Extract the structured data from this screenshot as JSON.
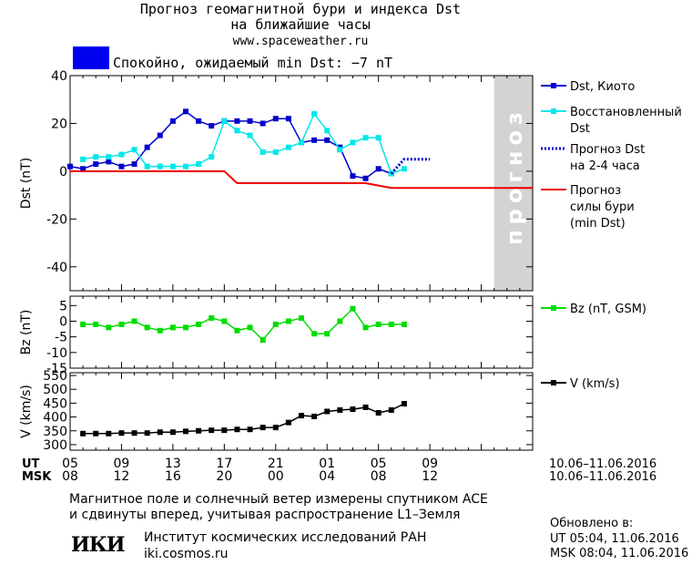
{
  "header": {
    "title_line1": "Прогноз геомагнитной бури и индекса Dst",
    "title_line2": "на ближайшие часы",
    "url": "www.spaceweather.ru",
    "status_text": "Спокойно, ожидаемый min Dst: −7 nT",
    "status_color": "#0000ee"
  },
  "chart_data": [
    {
      "type": "line",
      "ylabel": "Dst (nT)",
      "ylim": [
        -50,
        40
      ],
      "yticks": [
        -40,
        -20,
        0,
        20,
        40
      ],
      "xlim": [
        5,
        41
      ],
      "forecast_region_label": "прогноз",
      "forecast_region": [
        38,
        41
      ],
      "series": [
        {
          "name": "Dst, Киото",
          "color": "#0000cc",
          "x": [
            5,
            6,
            7,
            8,
            9,
            10,
            11,
            12,
            13,
            14,
            15,
            16,
            17,
            18,
            19,
            20,
            21,
            22,
            23,
            24,
            25,
            26,
            27,
            28,
            29,
            30,
            31,
            32
          ],
          "y": [
            2,
            1,
            3,
            4,
            2,
            3,
            10,
            15,
            21,
            25,
            21,
            19,
            21,
            21,
            21,
            20,
            22,
            22,
            12,
            13,
            13,
            10,
            -2,
            -3,
            1,
            -1,
            null,
            null
          ]
        },
        {
          "name": "Восстановленный Dst",
          "color": "#00e8e8",
          "x": [
            6,
            7,
            8,
            9,
            10,
            11,
            12,
            13,
            14,
            15,
            16,
            17,
            18,
            19,
            20,
            21,
            22,
            23,
            24,
            25,
            26,
            27,
            28,
            29,
            30,
            31
          ],
          "y": [
            5,
            6,
            6,
            7,
            9,
            2,
            2,
            2,
            2,
            3,
            6,
            21,
            17,
            15,
            8,
            8,
            10,
            12,
            24,
            17,
            9,
            12,
            14,
            14,
            -1,
            1
          ]
        },
        {
          "name": "Прогноз Dst на 2-4 часа",
          "color": "#0000cc",
          "x": [
            30,
            31,
            32,
            33
          ],
          "y": [
            -1,
            5,
            5,
            5
          ]
        },
        {
          "name": "Прогноз силы бури (min Dst)",
          "color": "#ee0000",
          "x": [
            5,
            17,
            18,
            28,
            30,
            41
          ],
          "y": [
            0,
            0,
            -5,
            -5,
            -7,
            -7
          ]
        }
      ]
    },
    {
      "type": "line",
      "ylabel": "Bz (nT)",
      "ylim": [
        -15,
        8
      ],
      "yticks": [
        5,
        0,
        -5,
        -10,
        -15
      ],
      "series": [
        {
          "name": "Bz (nT, GSM)",
          "color": "#00dd00",
          "x": [
            6,
            7,
            8,
            9,
            10,
            11,
            12,
            13,
            14,
            15,
            16,
            17,
            18,
            19,
            20,
            21,
            22,
            23,
            24,
            25,
            26,
            27,
            28,
            29,
            30,
            31
          ],
          "y": [
            -1,
            -1,
            -2,
            -1,
            0,
            -2,
            -3,
            -2,
            -2,
            -1,
            1,
            0,
            -3,
            -2,
            -6,
            -1,
            0,
            1,
            -4,
            -4,
            0,
            4,
            -2,
            -1,
            -1,
            -1
          ]
        }
      ]
    },
    {
      "type": "line",
      "ylabel": "V (km/s)",
      "ylim": [
        280,
        560
      ],
      "yticks": [
        550,
        500,
        450,
        400,
        350,
        300
      ],
      "series": [
        {
          "name": "V (km/s)",
          "color": "#000000",
          "x": [
            6,
            7,
            8,
            9,
            10,
            11,
            12,
            13,
            14,
            15,
            16,
            17,
            18,
            19,
            20,
            21,
            22,
            23,
            24,
            25,
            26,
            27,
            28,
            29,
            30,
            31
          ],
          "y": [
            340,
            340,
            340,
            342,
            342,
            342,
            345,
            345,
            348,
            350,
            352,
            352,
            355,
            355,
            362,
            362,
            380,
            405,
            402,
            420,
            425,
            428,
            435,
            415,
            425,
            448
          ]
        }
      ]
    }
  ],
  "time_axis": {
    "ut_label": "UT",
    "msk_label": "MSK",
    "ut_ticks": [
      "05",
      "09",
      "13",
      "17",
      "21",
      "01",
      "05",
      "09"
    ],
    "msk_ticks": [
      "08",
      "12",
      "16",
      "20",
      "00",
      "04",
      "08",
      "12"
    ],
    "ut_range": "10.06–11.06.2016",
    "msk_range": "10.06–11.06.2016"
  },
  "footer": {
    "note_line1": "Магнитное поле и солнечный ветер измерены спутником ACE",
    "note_line2": "и сдвинуты вперед, учитывая распространение L1–Земля",
    "updated_label": "Обновлено в:",
    "updated_ut": "UT  05:04, 11.06.2016",
    "updated_msk": "MSK 08:04, 11.06.2016",
    "logo_text": "ИКИ",
    "institute": "Институт космических исследований РАН",
    "institute_url": "iki.cosmos.ru"
  }
}
